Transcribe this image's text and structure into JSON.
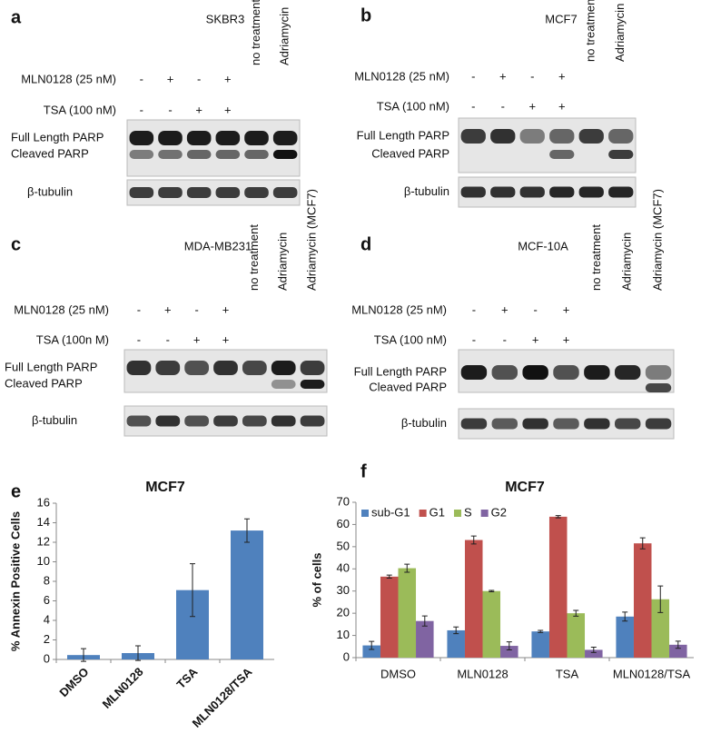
{
  "panels": [
    {
      "letter": "a",
      "title": "SKBR3",
      "treatments": [
        {
          "label": "MLN0128 (25 nM)",
          "signs": [
            "-",
            "+",
            "-",
            "+"
          ]
        },
        {
          "label": "TSA (100 nM)",
          "signs": [
            "-",
            "-",
            "+",
            "+"
          ]
        }
      ],
      "lane_headers": [
        "no treatment",
        "Adriamycin"
      ],
      "band_labels": [
        "Full Length PARP",
        "Cleaved PARP",
        "β-tubulin"
      ]
    },
    {
      "letter": "b",
      "title": "MCF7",
      "treatments": [
        {
          "label": "MLN0128 (25 nM)",
          "signs": [
            "-",
            "+",
            "-",
            "+"
          ]
        },
        {
          "label": "TSA (100 nM)",
          "signs": [
            "-",
            "-",
            "+",
            "+"
          ]
        }
      ],
      "lane_headers": [
        "no treatment",
        "Adriamycin"
      ],
      "band_labels": [
        "Full Length PARP",
        "Cleaved PARP",
        "β-tubulin"
      ]
    },
    {
      "letter": "c",
      "title": "MDA-MB231",
      "treatments": [
        {
          "label": "MLN0128 (25 nM)",
          "signs": [
            "-",
            "+",
            "-",
            "+"
          ]
        },
        {
          "label": "TSA (100n M)",
          "signs": [
            "-",
            "-",
            "+",
            "+"
          ]
        }
      ],
      "lane_headers": [
        "no treatment",
        "Adriamycin",
        "Adriamycin (MCF7)"
      ],
      "band_labels": [
        "Full Length PARP",
        "Cleaved PARP",
        "β-tubulin"
      ]
    },
    {
      "letter": "d",
      "title": "MCF-10A",
      "treatments": [
        {
          "label": "MLN0128 (25 nM)",
          "signs": [
            "-",
            "+",
            "-",
            "+"
          ]
        },
        {
          "label": "TSA (100 nM)",
          "signs": [
            "-",
            "-",
            "+",
            "+"
          ]
        }
      ],
      "lane_headers": [
        "no treatment",
        "Adriamycin",
        "Adriamycin (MCF7)"
      ],
      "band_labels": [
        "Full Length PARP",
        "Cleaved PARP",
        "β-tubulin"
      ]
    }
  ],
  "chart_data": [
    {
      "type": "bar",
      "panel": "e",
      "title": "MCF7",
      "ylabel": "% Annexin Positive Cells",
      "categories": [
        "DMSO",
        "MLN0128",
        "TSA",
        "MLN0128/TSA"
      ],
      "values": [
        0.45,
        0.65,
        7.1,
        13.2
      ],
      "errors": [
        0.65,
        0.75,
        2.7,
        1.2
      ],
      "color": "#4f81bd",
      "ylim": [
        0,
        16
      ],
      "yticks": [
        0,
        2,
        4,
        6,
        8,
        10,
        12,
        14,
        16
      ]
    },
    {
      "type": "bar",
      "panel": "f",
      "title": "MCF7",
      "ylabel": "% of cells",
      "categories": [
        "DMSO",
        "MLN0128",
        "TSA",
        "MLN0128/TSA"
      ],
      "series": [
        {
          "name": "sub-G1",
          "color": "#4f81bd",
          "values": [
            5.5,
            12.3,
            11.8,
            18.5
          ],
          "errors": [
            1.8,
            1.5,
            0.5,
            2.0
          ]
        },
        {
          "name": "G1",
          "color": "#c0504d",
          "values": [
            36.5,
            53,
            63.5,
            51.5
          ],
          "errors": [
            0.7,
            1.8,
            0.5,
            2.5
          ]
        },
        {
          "name": "S",
          "color": "#9bbb59",
          "values": [
            40.3,
            30,
            20,
            26.3
          ],
          "errors": [
            1.8,
            0.3,
            1.3,
            6.0
          ]
        },
        {
          "name": "G2",
          "color": "#8064a2",
          "values": [
            16.5,
            5.3,
            3.5,
            5.8
          ],
          "errors": [
            2.3,
            1.8,
            1.2,
            1.6
          ]
        }
      ],
      "ylim": [
        0,
        70
      ],
      "yticks": [
        0,
        10,
        20,
        30,
        40,
        50,
        60,
        70
      ],
      "legend": "top-left"
    }
  ]
}
